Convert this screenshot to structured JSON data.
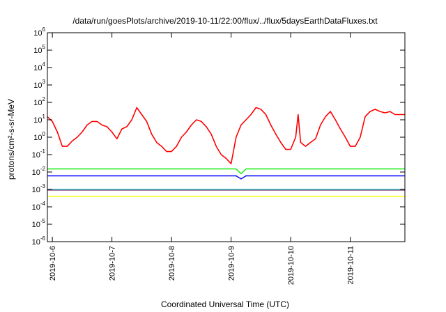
{
  "chart_data": {
    "type": "line",
    "title": "/data/run/goesPlots/archive/2019-10-11/22:00/flux/../flux/5daysEarthDataFluxes.txt",
    "xlabel": "Coordinated Universal Time (UTC)",
    "ylabel": "protons/cm²-s-sr-MeV",
    "yscale": "log",
    "ylim": [
      1e-06,
      1000000.0
    ],
    "xlim": [
      "2019-10-05T22:00",
      "2019-10-11T22:00"
    ],
    "grid": false,
    "legend": "none",
    "yticks": [
      {
        "value": 1e-06,
        "base": "10",
        "exp": "-6"
      },
      {
        "value": 1e-05,
        "base": "10",
        "exp": "-5"
      },
      {
        "value": 0.0001,
        "base": "10",
        "exp": "-4"
      },
      {
        "value": 0.001,
        "base": "10",
        "exp": "-3"
      },
      {
        "value": 0.01,
        "base": "10",
        "exp": "-2"
      },
      {
        "value": 0.1,
        "base": "10",
        "exp": "-1"
      },
      {
        "value": 1,
        "base": "10",
        "exp": "0"
      },
      {
        "value": 10,
        "base": "10",
        "exp": "1"
      },
      {
        "value": 100,
        "base": "10",
        "exp": "2"
      },
      {
        "value": 1000,
        "base": "10",
        "exp": "3"
      },
      {
        "value": 10000,
        "base": "10",
        "exp": "4"
      },
      {
        "value": 100000,
        "base": "10",
        "exp": "5"
      },
      {
        "value": 1000000,
        "base": "10",
        "exp": "6"
      }
    ],
    "xticks": [
      "2019-10-6",
      "2019-10-7",
      "2019-10-8",
      "2019-10-9",
      "2019-10-10",
      "2019-10-11"
    ],
    "series": [
      {
        "color": "#ff0000",
        "x": [
          "2019-10-05T22:00",
          "2019-10-06T00:00",
          "2019-10-06T02:00",
          "2019-10-06T04:00",
          "2019-10-06T06:00",
          "2019-10-06T08:00",
          "2019-10-06T10:00",
          "2019-10-06T12:00",
          "2019-10-06T14:00",
          "2019-10-06T16:00",
          "2019-10-06T18:00",
          "2019-10-06T20:00",
          "2019-10-06T22:00",
          "2019-10-07T00:00",
          "2019-10-07T02:00",
          "2019-10-07T04:00",
          "2019-10-07T06:00",
          "2019-10-07T08:00",
          "2019-10-07T10:00",
          "2019-10-07T12:00",
          "2019-10-07T14:00",
          "2019-10-07T16:00",
          "2019-10-07T18:00",
          "2019-10-07T20:00",
          "2019-10-07T22:00",
          "2019-10-08T00:00",
          "2019-10-08T02:00",
          "2019-10-08T04:00",
          "2019-10-08T06:00",
          "2019-10-08T08:00",
          "2019-10-08T10:00",
          "2019-10-08T12:00",
          "2019-10-08T14:00",
          "2019-10-08T16:00",
          "2019-10-08T18:00",
          "2019-10-08T20:00",
          "2019-10-08T22:00",
          "2019-10-09T00:00",
          "2019-10-09T02:00",
          "2019-10-09T04:00",
          "2019-10-09T06:00",
          "2019-10-09T08:00",
          "2019-10-09T10:00",
          "2019-10-09T12:00",
          "2019-10-09T14:00",
          "2019-10-09T16:00",
          "2019-10-09T18:00",
          "2019-10-09T20:00",
          "2019-10-09T22:00",
          "2019-10-10T00:00",
          "2019-10-10T02:00",
          "2019-10-10T03:00",
          "2019-10-10T04:00",
          "2019-10-10T06:00",
          "2019-10-10T08:00",
          "2019-10-10T10:00",
          "2019-10-10T12:00",
          "2019-10-10T14:00",
          "2019-10-10T16:00",
          "2019-10-10T18:00",
          "2019-10-10T20:00",
          "2019-10-10T22:00",
          "2019-10-11T00:00",
          "2019-10-11T02:00",
          "2019-10-11T04:00",
          "2019-10-11T06:00",
          "2019-10-11T08:00",
          "2019-10-11T10:00",
          "2019-10-11T12:00",
          "2019-10-11T14:00",
          "2019-10-11T16:00",
          "2019-10-11T18:00",
          "2019-10-11T20:00",
          "2019-10-11T22:00"
        ],
        "y": [
          15,
          8,
          2,
          0.3,
          0.3,
          0.6,
          1,
          2,
          5,
          8,
          8,
          5,
          4,
          2,
          0.8,
          3,
          4,
          10,
          50,
          20,
          8,
          1.5,
          0.5,
          0.3,
          0.15,
          0.15,
          0.3,
          1,
          2,
          5,
          10,
          8,
          4,
          1.5,
          0.3,
          0.1,
          0.06,
          0.03,
          1,
          5,
          10,
          20,
          50,
          40,
          20,
          5,
          1.5,
          0.5,
          0.2,
          0.2,
          1,
          20,
          0.5,
          0.3,
          0.5,
          0.8,
          5,
          15,
          30,
          10,
          3,
          1,
          0.3,
          0.3,
          1,
          15,
          30,
          40,
          30,
          25,
          30,
          20,
          20,
          20
        ]
      },
      {
        "color": "#00ee00",
        "x": [
          "2019-10-05T22:00",
          "2019-10-09T02:00",
          "2019-10-09T04:00",
          "2019-10-09T06:00",
          "2019-10-11T22:00"
        ],
        "y": [
          0.015,
          0.015,
          0.008,
          0.015,
          0.015
        ]
      },
      {
        "color": "#0000ff",
        "x": [
          "2019-10-05T22:00",
          "2019-10-09T02:00",
          "2019-10-09T04:00",
          "2019-10-09T06:00",
          "2019-10-11T22:00"
        ],
        "y": [
          0.006,
          0.006,
          0.004,
          0.006,
          0.006
        ]
      },
      {
        "color": "#ffff00",
        "x": [
          "2019-10-05T22:00",
          "2019-10-09T04:00",
          "2019-10-11T22:00"
        ],
        "y": [
          0.0004,
          0.0004,
          0.0004
        ]
      },
      {
        "color": "#00cccc",
        "x": [
          "2019-10-05T22:00",
          "2019-10-09T04:00",
          "2019-10-11T22:00"
        ],
        "y": [
          0.001,
          0.001,
          0.001
        ]
      },
      {
        "color": "#905080",
        "x": [
          "2019-10-05T22:00",
          "2019-10-09T04:00",
          "2019-10-11T22:00"
        ],
        "y": [
          0.0009,
          0.0009,
          0.0009
        ]
      }
    ]
  }
}
